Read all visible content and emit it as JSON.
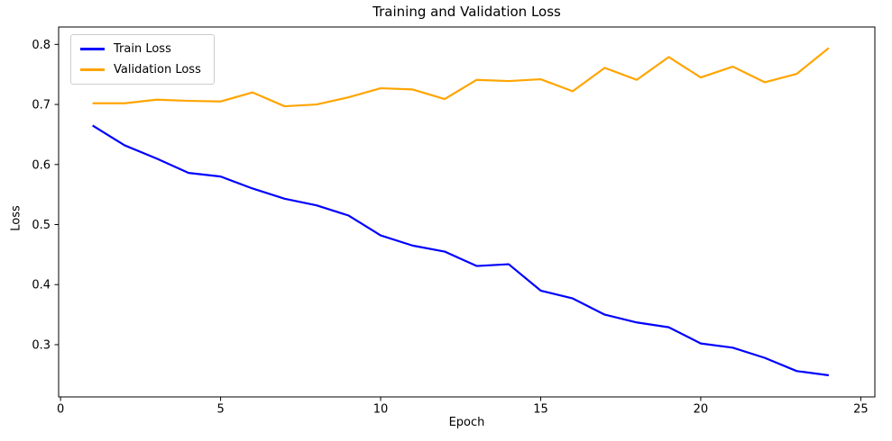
{
  "figure": {
    "background": "#ffffff"
  },
  "chart_data": {
    "type": "line",
    "title": "Training and Validation Loss",
    "xlabel": "Epoch",
    "ylabel": "Loss",
    "x": [
      1,
      2,
      3,
      4,
      5,
      6,
      7,
      8,
      9,
      10,
      11,
      12,
      13,
      14,
      15,
      16,
      17,
      18,
      19,
      20,
      21,
      22,
      23,
      24
    ],
    "series": [
      {
        "name": "Train Loss",
        "color": "#0000ff",
        "values": [
          0.665,
          0.632,
          0.61,
          0.586,
          0.58,
          0.56,
          0.543,
          0.532,
          0.515,
          0.482,
          0.465,
          0.455,
          0.431,
          0.434,
          0.39,
          0.377,
          0.35,
          0.337,
          0.329,
          0.302,
          0.295,
          0.278,
          0.256,
          0.249
        ]
      },
      {
        "name": "Validation Loss",
        "color": "#ffa500",
        "values": [
          0.702,
          0.702,
          0.708,
          0.706,
          0.705,
          0.72,
          0.697,
          0.7,
          0.712,
          0.727,
          0.725,
          0.709,
          0.741,
          0.739,
          0.742,
          0.722,
          0.761,
          0.741,
          0.779,
          0.745,
          0.763,
          0.737,
          0.751,
          0.794
        ]
      }
    ],
    "xlim": [
      -0.06,
      25.44
    ],
    "ylim": [
      0.213,
      0.829
    ],
    "xticks": [
      0,
      5,
      10,
      15,
      20,
      25
    ],
    "xtick_labels": [
      "0",
      "5",
      "10",
      "15",
      "20",
      "25"
    ],
    "yticks": [
      0.3,
      0.4,
      0.5,
      0.6,
      0.7,
      0.8
    ],
    "ytick_labels": [
      "0.3",
      "0.4",
      "0.5",
      "0.6",
      "0.7",
      "0.8"
    ],
    "grid": false,
    "legend_position": "upper left",
    "axis_color": "#000000",
    "text_color": "#000000",
    "line_width": 2.2
  }
}
